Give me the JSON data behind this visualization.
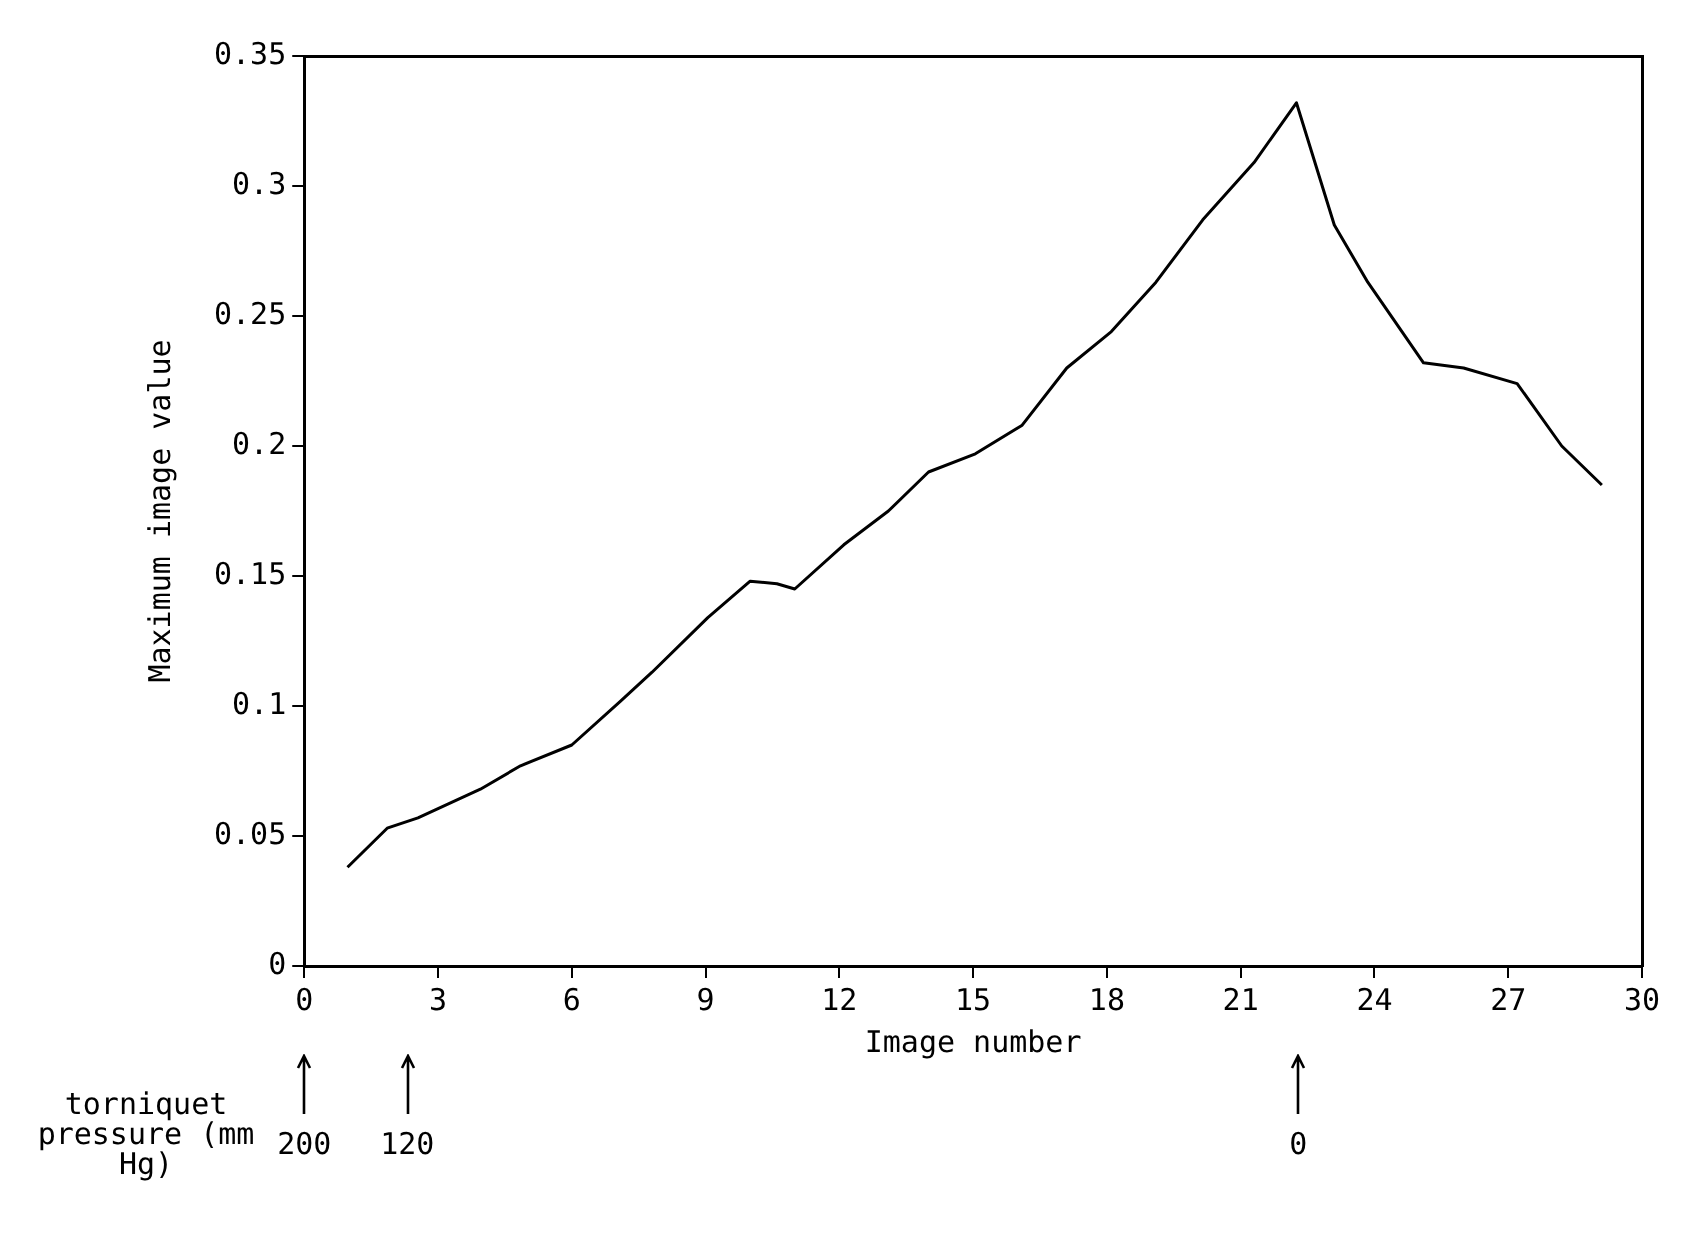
{
  "chart_data": {
    "type": "line",
    "xlabel": "Image number",
    "ylabel": "Maximum image value",
    "xlim": [
      0,
      30
    ],
    "xticks": [
      0,
      3,
      6,
      9,
      12,
      15,
      18,
      21,
      24,
      27,
      30
    ],
    "ylim": [
      0,
      0.35
    ],
    "yticks": [
      0,
      0.05,
      0.1,
      0.15,
      0.2,
      0.25,
      0.3,
      0.35
    ],
    "grid": false,
    "legend": false,
    "marker": "none",
    "line_style": "solid",
    "series": [
      {
        "color": "#000000",
        "x": [
          0.97,
          1.86,
          2.55,
          3.95,
          4.85,
          6.0,
          7.1,
          7.8,
          9.05,
          10.0,
          10.6,
          11.0,
          12.1,
          13.1,
          14.0,
          15.05,
          16.1,
          17.1,
          18.1,
          19.1,
          20.15,
          21.3,
          22.25,
          23.1,
          23.85,
          25.1,
          26.0,
          27.2,
          28.2,
          29.1
        ],
        "values": [
          0.038,
          0.053,
          0.057,
          0.068,
          0.077,
          0.085,
          0.102,
          0.113,
          0.134,
          0.148,
          0.147,
          0.145,
          0.162,
          0.175,
          0.19,
          0.197,
          0.208,
          0.23,
          0.244,
          0.263,
          0.287,
          0.309,
          0.332,
          0.285,
          0.263,
          0.232,
          0.23,
          0.224,
          0.2,
          0.185
        ]
      }
    ],
    "annotations": [
      "torniquet pressure (mm Hg)",
      "200",
      "120",
      "0"
    ]
  }
}
